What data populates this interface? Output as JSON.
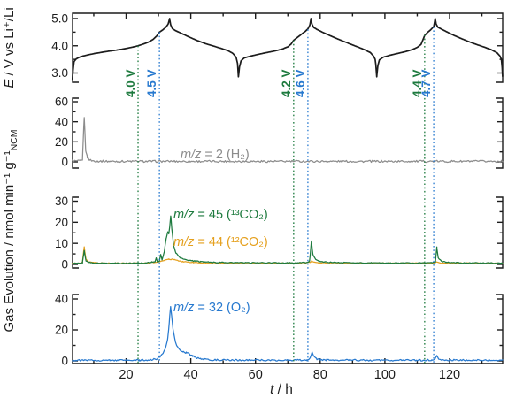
{
  "chart_data": {
    "type": "line",
    "title": "",
    "xlabel_italic": "t",
    "xlabel_rest": " / h",
    "x_range": [
      3.4,
      136.4
    ],
    "x_major_ticks": [
      20,
      40,
      60,
      80,
      100,
      120
    ],
    "x_minor_ticks": [
      10,
      30,
      50,
      70,
      90,
      110,
      130
    ],
    "colors": {
      "black": "#1c1c1c",
      "gray": "#8c8c8c",
      "green": "#1d7a3e",
      "orange": "#e5a01e",
      "blue": "#2779cf"
    },
    "panels": [
      {
        "id": "voltage",
        "ylabel_italic": "E",
        "ylabel_rest": " / V vs Li⁺/Li",
        "ylim": [
          2.6,
          5.15
        ],
        "ytick_labels": [
          "3.0",
          "4.0",
          "5.0"
        ],
        "ytick_values": [
          3.0,
          4.0,
          5.0
        ],
        "yminor_values": [
          3.5,
          4.5
        ],
        "series": [
          "voltage"
        ]
      },
      {
        "id": "h2",
        "ylim": [
          0,
          64
        ],
        "ytick_labels": [
          "0",
          "20",
          "40",
          "60"
        ],
        "ytick_values": [
          0,
          20,
          40,
          60
        ],
        "yminor_values": [
          10,
          30,
          50
        ],
        "series": [
          "h2"
        ]
      },
      {
        "id": "co2",
        "ylim": [
          0,
          32
        ],
        "ytick_labels": [
          "0",
          "10",
          "20",
          "30"
        ],
        "ytick_values": [
          0,
          10,
          20,
          30
        ],
        "yminor_values": [
          5,
          15,
          25
        ],
        "series": [
          "co2_13",
          "co2_12"
        ]
      },
      {
        "id": "o2",
        "ylim": [
          0,
          43
        ],
        "ytick_labels": [
          "0",
          "20",
          "40"
        ],
        "ytick_values": [
          0,
          20,
          40
        ],
        "yminor_values": [
          10,
          30
        ],
        "series": [
          "o2"
        ]
      }
    ],
    "gas_ylabel": {
      "text": "Gas Evolution / nmol min⁻¹ g⁻¹",
      "sub": "NCM"
    },
    "series_labels": [
      {
        "series": "h2",
        "italic": "m/z",
        "rest": " = 2 (H₂)",
        "color": "#8c8c8c"
      },
      {
        "series": "co2_13",
        "italic": "m/z",
        "rest": " = 45 (¹³CO₂)",
        "color": "#1d7a3e"
      },
      {
        "series": "co2_12",
        "italic": "m/z",
        "rest": " = 44 (¹²CO₂)",
        "color": "#e5a01e"
      },
      {
        "series": "o2",
        "italic": "m/z",
        "rest": " = 32 (O₂)",
        "color": "#2779cf"
      }
    ],
    "threshold_lines": [
      {
        "label": "4.0 V",
        "voltage": 4.0,
        "t": 23.7,
        "color": "#1d7a3e"
      },
      {
        "label": "4.5 V",
        "voltage": 4.5,
        "t": 30.3,
        "color": "#2779cf"
      },
      {
        "label": "4.2 V",
        "voltage": 4.2,
        "t": 71.8,
        "color": "#1d7a3e"
      },
      {
        "label": "4.6 V",
        "voltage": 4.6,
        "t": 76.2,
        "color": "#2779cf"
      },
      {
        "label": "4.4 V",
        "voltage": 4.4,
        "t": 112.3,
        "color": "#1d7a3e"
      },
      {
        "label": "4.7 V",
        "voltage": 4.7,
        "t": 115.1,
        "color": "#2779cf"
      }
    ],
    "series": {
      "voltage": {
        "color": "#1c1c1c",
        "noise": 0,
        "points": [
          [
            3.4,
            2.78
          ],
          [
            3.6,
            3.1
          ],
          [
            3.9,
            3.42
          ],
          [
            4.6,
            3.52
          ],
          [
            6,
            3.6
          ],
          [
            8,
            3.66
          ],
          [
            10,
            3.71
          ],
          [
            12,
            3.75
          ],
          [
            14.5,
            3.8
          ],
          [
            17,
            3.84
          ],
          [
            19.5,
            3.89
          ],
          [
            22,
            3.95
          ],
          [
            23.7,
            4.0
          ],
          [
            25.5,
            4.07
          ],
          [
            27,
            4.14
          ],
          [
            28.3,
            4.23
          ],
          [
            29.4,
            4.35
          ],
          [
            30.3,
            4.5
          ],
          [
            31.3,
            4.58
          ],
          [
            32.3,
            4.68
          ],
          [
            33,
            4.8
          ],
          [
            33.45,
            5.0
          ],
          [
            33.75,
            4.78
          ],
          [
            34.3,
            4.63
          ],
          [
            35.2,
            4.56
          ],
          [
            37,
            4.46
          ],
          [
            39.5,
            4.32
          ],
          [
            42,
            4.19
          ],
          [
            44.5,
            4.08
          ],
          [
            47,
            3.99
          ],
          [
            49.5,
            3.9
          ],
          [
            51.5,
            3.82
          ],
          [
            53,
            3.72
          ],
          [
            54,
            3.58
          ],
          [
            54.45,
            3.35
          ],
          [
            54.72,
            2.86
          ],
          [
            55.05,
            3.22
          ],
          [
            55.5,
            3.44
          ],
          [
            56.5,
            3.55
          ],
          [
            58.5,
            3.62
          ],
          [
            61,
            3.69
          ],
          [
            63.5,
            3.75
          ],
          [
            66,
            3.81
          ],
          [
            68.3,
            3.88
          ],
          [
            70,
            3.96
          ],
          [
            71,
            4.06
          ],
          [
            71.8,
            4.2
          ],
          [
            72.9,
            4.3
          ],
          [
            74.2,
            4.42
          ],
          [
            75.4,
            4.53
          ],
          [
            76.2,
            4.62
          ],
          [
            76.8,
            4.76
          ],
          [
            77.15,
            5.0
          ],
          [
            77.45,
            4.8
          ],
          [
            78,
            4.67
          ],
          [
            79,
            4.6
          ],
          [
            80.5,
            4.51
          ],
          [
            82.5,
            4.4
          ],
          [
            85,
            4.27
          ],
          [
            87.5,
            4.15
          ],
          [
            90,
            4.03
          ],
          [
            92,
            3.94
          ],
          [
            94,
            3.84
          ],
          [
            95.5,
            3.75
          ],
          [
            96.5,
            3.62
          ],
          [
            97,
            3.5
          ],
          [
            97.25,
            3.25
          ],
          [
            97.48,
            2.86
          ],
          [
            97.8,
            3.25
          ],
          [
            98.3,
            3.48
          ],
          [
            99.5,
            3.58
          ],
          [
            101.5,
            3.65
          ],
          [
            104,
            3.72
          ],
          [
            106.5,
            3.79
          ],
          [
            108.5,
            3.86
          ],
          [
            110,
            3.94
          ],
          [
            111.2,
            4.05
          ],
          [
            112.3,
            4.38
          ],
          [
            113.2,
            4.49
          ],
          [
            114.2,
            4.59
          ],
          [
            115.1,
            4.7
          ],
          [
            115.55,
            5.0
          ],
          [
            115.85,
            4.8
          ],
          [
            116.4,
            4.68
          ],
          [
            117.5,
            4.61
          ],
          [
            119,
            4.52
          ],
          [
            121,
            4.4
          ],
          [
            123.5,
            4.27
          ],
          [
            126,
            4.15
          ],
          [
            128.5,
            4.04
          ],
          [
            131,
            3.94
          ],
          [
            133,
            3.85
          ],
          [
            134.7,
            3.74
          ],
          [
            135.6,
            3.62
          ],
          [
            136,
            3.5
          ],
          [
            136.25,
            3.2
          ],
          [
            136.4,
            2.88
          ]
        ]
      },
      "h2": {
        "color": "#8c8c8c",
        "noise": 1.0,
        "points": [
          [
            3.4,
            1.2
          ],
          [
            4.5,
            0.7
          ],
          [
            5.8,
            0.9
          ],
          [
            6.5,
            1.5
          ],
          [
            7.05,
            45
          ],
          [
            7.5,
            12
          ],
          [
            8,
            4.5
          ],
          [
            8.7,
            2
          ],
          [
            9.6,
            1.1
          ],
          [
            11,
            0.7
          ],
          [
            15,
            0.5
          ],
          [
            136.4,
            0.5
          ]
        ]
      },
      "co2_13": {
        "color": "#1d7a3e",
        "noise": 0.22,
        "points": [
          [
            3.4,
            0.5
          ],
          [
            5.8,
            0.5
          ],
          [
            6.5,
            0.8
          ],
          [
            7.05,
            6.5
          ],
          [
            7.6,
            1.8
          ],
          [
            8.5,
            0.9
          ],
          [
            10,
            0.6
          ],
          [
            20,
            0.55
          ],
          [
            26,
            0.7
          ],
          [
            27.8,
            1.1
          ],
          [
            28.9,
            1.1
          ],
          [
            29.3,
            3.2
          ],
          [
            29.7,
            1.2
          ],
          [
            30.3,
            1.4
          ],
          [
            30.7,
            4.8
          ],
          [
            31.1,
            2.2
          ],
          [
            31.8,
            6
          ],
          [
            32.4,
            12.5
          ],
          [
            32.9,
            15.6
          ],
          [
            33.2,
            14.6
          ],
          [
            33.5,
            18
          ],
          [
            33.8,
            23.2
          ],
          [
            34.15,
            16.5
          ],
          [
            34.7,
            9
          ],
          [
            35.4,
            5.5
          ],
          [
            36.5,
            3.4
          ],
          [
            38,
            2.4
          ],
          [
            40,
            1.8
          ],
          [
            43,
            1.3
          ],
          [
            47,
            1
          ],
          [
            52,
            0.85
          ],
          [
            60,
            0.75
          ],
          [
            70,
            0.7
          ],
          [
            75.5,
            0.85
          ],
          [
            76.7,
            1.3
          ],
          [
            77.3,
            11.2
          ],
          [
            77.75,
            4.5
          ],
          [
            78.6,
            2.2
          ],
          [
            80,
            1.4
          ],
          [
            82,
            1.05
          ],
          [
            86,
            0.85
          ],
          [
            95,
            0.7
          ],
          [
            110,
            0.65
          ],
          [
            114.5,
            0.8
          ],
          [
            115.6,
            1.1
          ],
          [
            116.05,
            8.2
          ],
          [
            116.5,
            3
          ],
          [
            117.4,
            1.6
          ],
          [
            119,
            1.05
          ],
          [
            122,
            0.8
          ],
          [
            130,
            0.65
          ],
          [
            136.4,
            0.6
          ]
        ]
      },
      "co2_12": {
        "color": "#e5a01e",
        "noise": 0.22,
        "points": [
          [
            3.4,
            0.55
          ],
          [
            5.8,
            0.6
          ],
          [
            6.5,
            1
          ],
          [
            7.05,
            8.2
          ],
          [
            7.6,
            2.4
          ],
          [
            8.5,
            1.1
          ],
          [
            10,
            0.75
          ],
          [
            14,
            0.55
          ],
          [
            22,
            0.55
          ],
          [
            27,
            0.75
          ],
          [
            29,
            1
          ],
          [
            30.5,
            1.4
          ],
          [
            32,
            2
          ],
          [
            33.2,
            2.4
          ],
          [
            34.5,
            2.35
          ],
          [
            35.8,
            1.9
          ],
          [
            37.5,
            1.3
          ],
          [
            39.5,
            1
          ],
          [
            43,
            0.75
          ],
          [
            50,
            0.6
          ],
          [
            62,
            0.55
          ],
          [
            73,
            0.6
          ],
          [
            75.5,
            0.75
          ],
          [
            76.9,
            1.1
          ],
          [
            77.4,
            1.6
          ],
          [
            78.1,
            1
          ],
          [
            79.5,
            0.75
          ],
          [
            90,
            0.55
          ],
          [
            110,
            0.55
          ],
          [
            115.3,
            0.7
          ],
          [
            116.1,
            1.3
          ],
          [
            116.9,
            0.75
          ],
          [
            120,
            0.6
          ],
          [
            136.4,
            0.55
          ]
        ]
      },
      "o2": {
        "color": "#2779cf",
        "noise": 0.5,
        "points": [
          [
            3.4,
            0.35
          ],
          [
            15,
            0.35
          ],
          [
            24,
            0.4
          ],
          [
            27.5,
            0.6
          ],
          [
            29.3,
            1.2
          ],
          [
            30.5,
            2.6
          ],
          [
            31.4,
            4.5
          ],
          [
            32.2,
            8
          ],
          [
            32.9,
            15
          ],
          [
            33.35,
            25
          ],
          [
            33.75,
            35.5
          ],
          [
            34.1,
            29
          ],
          [
            34.5,
            21
          ],
          [
            35,
            14.5
          ],
          [
            35.7,
            9.5
          ],
          [
            36.5,
            7.3
          ],
          [
            37.5,
            6
          ],
          [
            38.6,
            5.3
          ],
          [
            39.6,
            4.4
          ],
          [
            40.6,
            3.2
          ],
          [
            41.7,
            2.1
          ],
          [
            43,
            1.3
          ],
          [
            45,
            0.8
          ],
          [
            48,
            0.55
          ],
          [
            55,
            0.45
          ],
          [
            65,
            0.4
          ],
          [
            73,
            0.45
          ],
          [
            75.8,
            0.6
          ],
          [
            76.9,
            1.6
          ],
          [
            77.5,
            5.6
          ],
          [
            78,
            2.6
          ],
          [
            78.8,
            1.3
          ],
          [
            80,
            0.8
          ],
          [
            82,
            0.55
          ],
          [
            95,
            0.4
          ],
          [
            110,
            0.4
          ],
          [
            114.5,
            0.5
          ],
          [
            115.5,
            1.1
          ],
          [
            116.05,
            3.2
          ],
          [
            116.6,
            1.3
          ],
          [
            117.6,
            0.7
          ],
          [
            120,
            0.5
          ],
          [
            136.4,
            0.45
          ]
        ]
      }
    }
  }
}
